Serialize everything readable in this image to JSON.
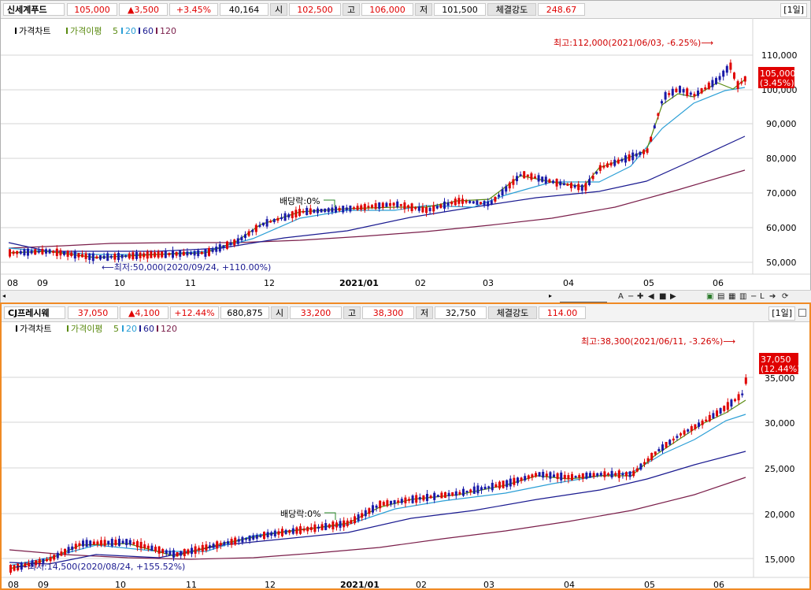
{
  "panels": [
    {
      "header": {
        "name": "신세계푸드",
        "price": "105,000",
        "change": "▲3,500",
        "change_pct": "+3.45%",
        "volume": "40,164",
        "open_label": "시",
        "open": "102,500",
        "high_label": "고",
        "high": "106,000",
        "low_label": "저",
        "low": "101,500",
        "strength_label": "체결강도",
        "strength": "248.67",
        "period": "[1일]"
      },
      "legend": {
        "chart": "가격차트",
        "ma_label": "가격이평",
        "ma": [
          "5",
          "20",
          "60",
          "120"
        ]
      },
      "annotations": {
        "high": "최고:112,000(2021/06/03, -6.25%)⟶",
        "low": "⟵최저:50,000(2020/09/24, +110.00%)",
        "dividend": "배당락:0%"
      },
      "price_tag": {
        "price": "105,000",
        "pct": "(3.45%)"
      },
      "y_ticks": [
        "110,000",
        "100,000",
        "90,000",
        "80,000",
        "70,000",
        "60,000",
        "50,000"
      ],
      "x_ticks": [
        "08",
        "09",
        "10",
        "11",
        "12",
        "2021/01",
        "02",
        "03",
        "04",
        "05",
        "06"
      ]
    },
    {
      "header": {
        "name": "CJ프레시웨",
        "price": "37,050",
        "change": "▲4,100",
        "change_pct": "+12.44%",
        "volume": "680,875",
        "open_label": "시",
        "open": "33,200",
        "high_label": "고",
        "high": "38,300",
        "low_label": "저",
        "low": "32,750",
        "strength_label": "체결강도",
        "strength": "114.00",
        "period": "[1일]"
      },
      "legend": {
        "chart": "가격차트",
        "ma_label": "가격이평",
        "ma": [
          "5",
          "20",
          "60",
          "120"
        ]
      },
      "annotations": {
        "high": "최고:38,300(2021/06/11, -3.26%)⟶",
        "low": "⟵최저:14,500(2020/08/24, +155.52%)",
        "dividend": "배당락:0%"
      },
      "price_tag": {
        "price": "37,050",
        "pct": "(12.44%)"
      },
      "y_ticks": [
        "35,000",
        "30,000",
        "25,000",
        "20,000",
        "15,000"
      ],
      "x_ticks": [
        "08",
        "09",
        "10",
        "11",
        "12",
        "2021/01",
        "02",
        "03",
        "04",
        "05",
        "06"
      ]
    }
  ],
  "colors": {
    "up": "#e00000",
    "down": "#1a1aa8",
    "ma5": "#5a8a10",
    "ma20": "#2b9fd6",
    "ma60": "#1a1a90",
    "ma120": "#7a1e4a",
    "accent": "#f08a24"
  }
}
